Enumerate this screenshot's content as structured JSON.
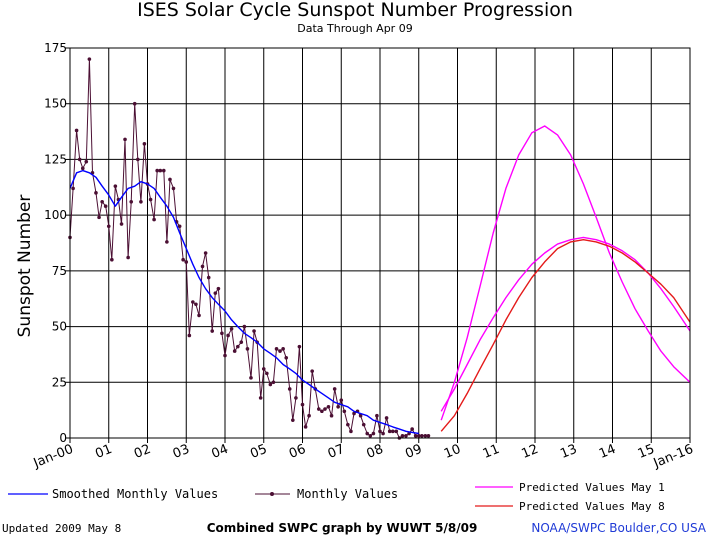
{
  "chart_data": {
    "type": "line",
    "title": "ISES Solar Cycle Sunspot Number Progression",
    "subtitle": "Data Through Apr 09",
    "xlabel": "",
    "ylabel": "Sunspot Number",
    "xlim": [
      2000.0,
      2016.0
    ],
    "ylim": [
      0,
      175
    ],
    "yticks": [
      0,
      25,
      50,
      75,
      100,
      125,
      150,
      175
    ],
    "xtick_labels": [
      {
        "x": 2000.0,
        "label": "Jan-00"
      },
      {
        "x": 2001.0,
        "label": "01"
      },
      {
        "x": 2002.0,
        "label": "02"
      },
      {
        "x": 2003.0,
        "label": "03"
      },
      {
        "x": 2004.0,
        "label": "04"
      },
      {
        "x": 2005.0,
        "label": "05"
      },
      {
        "x": 2006.0,
        "label": "06"
      },
      {
        "x": 2007.0,
        "label": "07"
      },
      {
        "x": 2008.0,
        "label": "08"
      },
      {
        "x": 2009.0,
        "label": "09"
      },
      {
        "x": 2010.0,
        "label": "10"
      },
      {
        "x": 2011.0,
        "label": "11"
      },
      {
        "x": 2012.0,
        "label": "12"
      },
      {
        "x": 2013.0,
        "label": "13"
      },
      {
        "x": 2014.0,
        "label": "14"
      },
      {
        "x": 2015.0,
        "label": "15"
      },
      {
        "x": 2016.0,
        "label": "Jan-16"
      }
    ],
    "grid": true,
    "series": [
      {
        "name": "Monthly Values",
        "color": "#4b0f33",
        "marker": "dot",
        "x": [
          2000.0,
          2000.08,
          2000.17,
          2000.25,
          2000.33,
          2000.42,
          2000.5,
          2000.58,
          2000.67,
          2000.75,
          2000.83,
          2000.92,
          2001.0,
          2001.08,
          2001.17,
          2001.25,
          2001.33,
          2001.42,
          2001.5,
          2001.58,
          2001.67,
          2001.75,
          2001.83,
          2001.92,
          2002.0,
          2002.08,
          2002.17,
          2002.25,
          2002.33,
          2002.42,
          2002.5,
          2002.58,
          2002.67,
          2002.75,
          2002.83,
          2002.92,
          2003.0,
          2003.08,
          2003.17,
          2003.25,
          2003.33,
          2003.42,
          2003.5,
          2003.58,
          2003.67,
          2003.75,
          2003.83,
          2003.92,
          2004.0,
          2004.08,
          2004.17,
          2004.25,
          2004.33,
          2004.42,
          2004.5,
          2004.58,
          2004.67,
          2004.75,
          2004.83,
          2004.92,
          2005.0,
          2005.08,
          2005.17,
          2005.25,
          2005.33,
          2005.42,
          2005.5,
          2005.58,
          2005.67,
          2005.75,
          2005.83,
          2005.92,
          2006.0,
          2006.08,
          2006.17,
          2006.25,
          2006.33,
          2006.42,
          2006.5,
          2006.58,
          2006.67,
          2006.75,
          2006.83,
          2006.92,
          2007.0,
          2007.08,
          2007.17,
          2007.25,
          2007.33,
          2007.42,
          2007.5,
          2007.58,
          2007.67,
          2007.75,
          2007.83,
          2007.92,
          2008.0,
          2008.08,
          2008.17,
          2008.25,
          2008.33,
          2008.42,
          2008.5,
          2008.58,
          2008.67,
          2008.75,
          2008.83,
          2008.92,
          2009.0,
          2009.08,
          2009.17,
          2009.25
        ],
        "y": [
          90,
          112,
          138,
          125,
          121,
          124,
          170,
          119,
          110,
          99,
          106,
          104,
          95,
          80,
          113,
          107,
          96,
          134,
          81,
          106,
          150,
          125,
          106,
          132,
          114,
          107,
          98,
          120,
          120,
          120,
          88,
          116,
          112,
          97,
          95,
          80,
          79,
          46,
          61,
          60,
          55,
          77,
          83,
          72,
          48,
          65,
          67,
          47,
          37,
          46,
          49,
          39,
          41,
          43,
          50,
          40,
          27,
          48,
          43,
          18,
          31,
          29,
          24,
          25,
          40,
          39,
          40,
          36,
          22,
          8,
          18,
          41,
          15,
          5,
          10,
          30,
          22,
          13,
          12,
          13,
          14,
          10,
          22,
          14,
          17,
          12,
          6,
          3,
          11,
          12,
          10,
          6,
          2,
          1,
          2,
          10,
          3,
          2,
          9,
          3,
          3,
          3,
          0,
          1,
          1,
          2,
          4,
          1,
          1,
          1,
          1,
          1
        ]
      },
      {
        "name": "Smoothed Monthly Values",
        "color": "#0000ff",
        "x": [
          2000.0,
          2000.17,
          2000.33,
          2000.5,
          2000.67,
          2000.83,
          2001.0,
          2001.17,
          2001.33,
          2001.5,
          2001.67,
          2001.83,
          2002.0,
          2002.17,
          2002.33,
          2002.5,
          2002.67,
          2002.83,
          2003.0,
          2003.17,
          2003.33,
          2003.5,
          2003.67,
          2003.83,
          2004.0,
          2004.17,
          2004.33,
          2004.5,
          2004.67,
          2004.83,
          2005.0,
          2005.17,
          2005.33,
          2005.5,
          2005.67,
          2005.83,
          2006.0,
          2006.17,
          2006.33,
          2006.5,
          2006.67,
          2006.83,
          2007.0,
          2007.17,
          2007.33,
          2007.5,
          2007.67,
          2007.83,
          2008.0,
          2008.17,
          2008.33,
          2008.5,
          2008.67,
          2008.83,
          2009.0
        ],
        "y": [
          112,
          119,
          120,
          119,
          117,
          113,
          109,
          104,
          108,
          112,
          113,
          115,
          114,
          112,
          108,
          104,
          99,
          92,
          85,
          78,
          72,
          67,
          63,
          60,
          57,
          53,
          50,
          47,
          45,
          43,
          40,
          38,
          36,
          33,
          31,
          29,
          26,
          24,
          22,
          20,
          18,
          16,
          15,
          14,
          12,
          11,
          10,
          8,
          7,
          6,
          5,
          4,
          3,
          2.5,
          2
        ]
      },
      {
        "name": "Predicted Values May 1",
        "color": "#ff00ff",
        "x": [
          2009.58,
          2009.92,
          2010.25,
          2010.58,
          2010.92,
          2011.25,
          2011.58,
          2011.92,
          2012.25,
          2012.58,
          2012.92,
          2013.25,
          2013.58,
          2013.92,
          2014.25,
          2014.58,
          2014.92,
          2015.25,
          2015.58,
          2016.0
        ],
        "y": [
          8,
          25,
          45,
          68,
          92,
          112,
          127,
          137,
          140,
          136,
          127,
          114,
          99,
          83,
          70,
          58,
          48,
          39,
          32,
          25
        ]
      },
      {
        "name": "Predicted Values May 1",
        "color": "#ff00ff",
        "x": [
          2009.58,
          2009.92,
          2010.25,
          2010.58,
          2010.92,
          2011.25,
          2011.58,
          2011.92,
          2012.25,
          2012.58,
          2012.92,
          2013.25,
          2013.58,
          2013.92,
          2014.25,
          2014.58,
          2014.92,
          2015.25,
          2015.58,
          2016.0
        ],
        "y": [
          12,
          22,
          33,
          44,
          54,
          63,
          71,
          78,
          83,
          87,
          89,
          90,
          89,
          87,
          84,
          80,
          74,
          67,
          59,
          48
        ]
      },
      {
        "name": "Predicted Values May 8",
        "color": "#e41a1a",
        "x": [
          2009.58,
          2009.92,
          2010.25,
          2010.58,
          2010.92,
          2011.25,
          2011.58,
          2011.92,
          2012.25,
          2012.58,
          2012.92,
          2013.25,
          2013.58,
          2013.92,
          2014.25,
          2014.58,
          2014.92,
          2015.25,
          2015.58,
          2016.0
        ],
        "y": [
          3,
          10,
          20,
          31,
          42,
          53,
          63,
          72,
          79,
          85,
          88,
          89,
          88,
          86,
          83,
          79,
          74,
          69,
          63,
          52
        ]
      }
    ],
    "legend": [
      {
        "label": "Smoothed Monthly Values",
        "color": "#0000ff",
        "style": "line"
      },
      {
        "label": "Monthly Values",
        "color": "#4b0f33",
        "style": "dot-line"
      },
      {
        "label": "Predicted Values  May  1",
        "color": "#ff00ff",
        "style": "line"
      },
      {
        "label": "Predicted Values  May  8",
        "color": "#e41a1a",
        "style": "line"
      }
    ],
    "legend_placement": "bottom"
  },
  "footer": {
    "updated": "Updated 2009 May  8",
    "credit": "Combined SWPC graph by WUWT 5/8/09",
    "source": "NOAA/SWPC Boulder,CO USA"
  }
}
